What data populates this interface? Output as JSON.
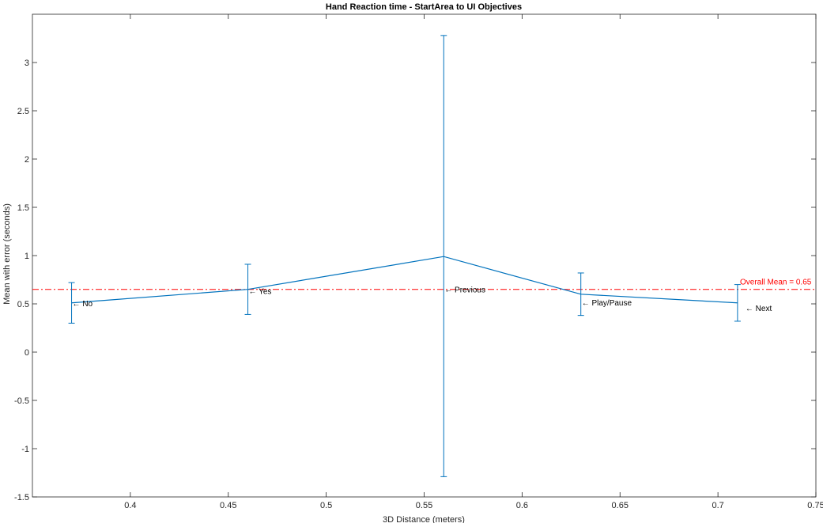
{
  "chart_data": {
    "type": "line",
    "title": "Hand Reaction time - StartArea to UI Objectives",
    "xlabel": "3D Distance (meters)",
    "ylabel": "Mean with error (seconds)",
    "xlim": [
      0.35,
      0.75
    ],
    "ylim": [
      -1.5,
      3.5
    ],
    "xticks": [
      0.4,
      0.45,
      0.5,
      0.55,
      0.6,
      0.65,
      0.7,
      0.75
    ],
    "xtick_labels": [
      "0.4",
      "0.45",
      "0.5",
      "0.55",
      "0.6",
      "0.65",
      "0.7",
      "0.75"
    ],
    "yticks": [
      -1.5,
      -1,
      -0.5,
      0,
      0.5,
      1,
      1.5,
      2,
      2.5,
      3
    ],
    "ytick_labels": [
      "-1.5",
      "-1",
      "-0.5",
      "0",
      "0.5",
      "1",
      "1.5",
      "2",
      "2.5",
      "3"
    ],
    "grid": false,
    "series": [
      {
        "color": "#0072BD",
        "points": [
          {
            "x": 0.37,
            "y": 0.51,
            "lower": 0.3,
            "upper": 0.72,
            "label": "← No"
          },
          {
            "x": 0.46,
            "y": 0.65,
            "lower": 0.39,
            "upper": 0.91,
            "label": "← Yes"
          },
          {
            "x": 0.56,
            "y": 0.99,
            "lower": -1.29,
            "upper": 3.28,
            "label": "← Previous"
          },
          {
            "x": 0.63,
            "y": 0.6,
            "lower": 0.38,
            "upper": 0.82,
            "label": "← Play/Pause"
          },
          {
            "x": 0.71,
            "y": 0.51,
            "lower": 0.32,
            "upper": 0.7,
            "label": "← Next"
          }
        ]
      }
    ],
    "reference_line": {
      "y": 0.65,
      "style": "dash-dot",
      "color": "#FF0000",
      "label": "Overall Mean = 0.65"
    }
  }
}
